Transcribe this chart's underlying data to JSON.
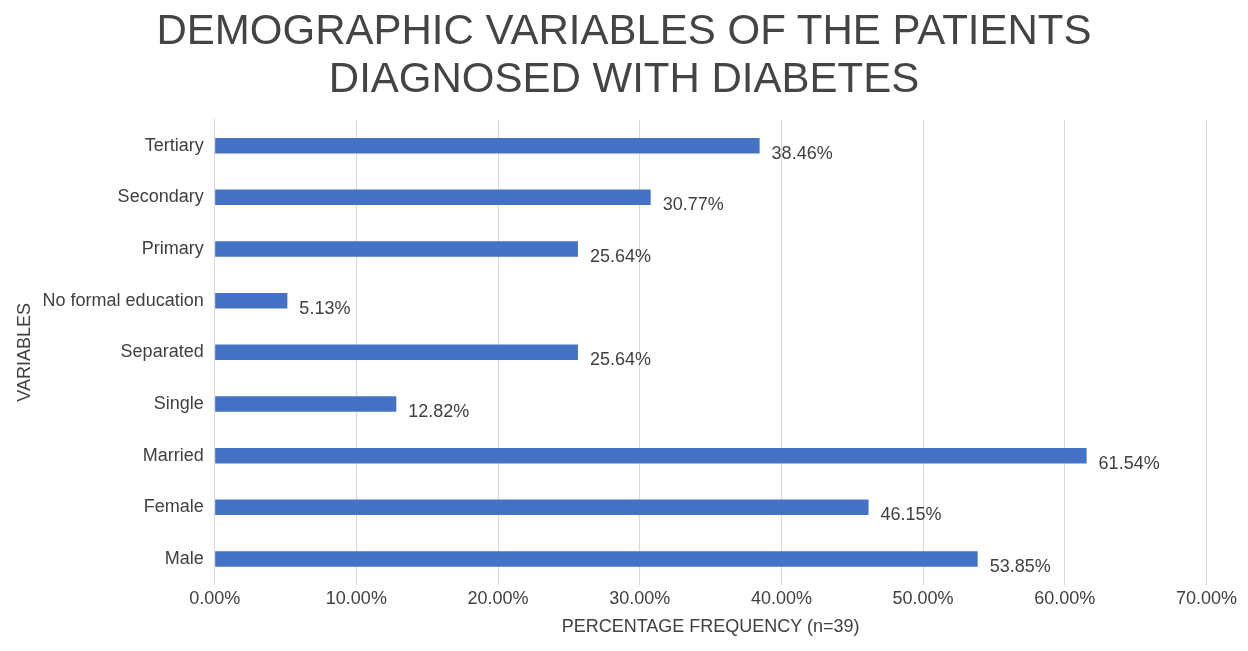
{
  "chart_data": {
    "type": "bar",
    "orientation": "horizontal",
    "title": "DEMOGRAPHIC VARIABLES OF THE PATIENTS DIAGNOSED WITH DIABETES",
    "xlabel": "PERCENTAGE FREQUENCY (n=39)",
    "ylabel": "VARIABLES",
    "categories": [
      "Tertiary",
      "Secondary",
      "Primary",
      "No formal education",
      "Separated",
      "Single",
      "Married",
      "Female",
      "Male"
    ],
    "values": [
      38.46,
      30.77,
      25.64,
      5.13,
      25.64,
      12.82,
      61.54,
      46.15,
      53.85
    ],
    "value_labels": [
      "38.46%",
      "30.77%",
      "25.64%",
      "5.13%",
      "25.64%",
      "12.82%",
      "61.54%",
      "46.15%",
      "53.85%"
    ],
    "color": "#4472c4",
    "xlim": [
      0,
      70
    ],
    "xticks": [
      {
        "value": 0,
        "label": "0.00%"
      },
      {
        "value": 10,
        "label": "10.00%"
      },
      {
        "value": 20,
        "label": "20.00%"
      },
      {
        "value": 30,
        "label": "30.00%"
      },
      {
        "value": 40,
        "label": "40.00%"
      },
      {
        "value": 50,
        "label": "50.00%"
      },
      {
        "value": 60,
        "label": "60.00%"
      },
      {
        "value": 70,
        "label": "70.00%"
      }
    ],
    "grid": "x"
  }
}
